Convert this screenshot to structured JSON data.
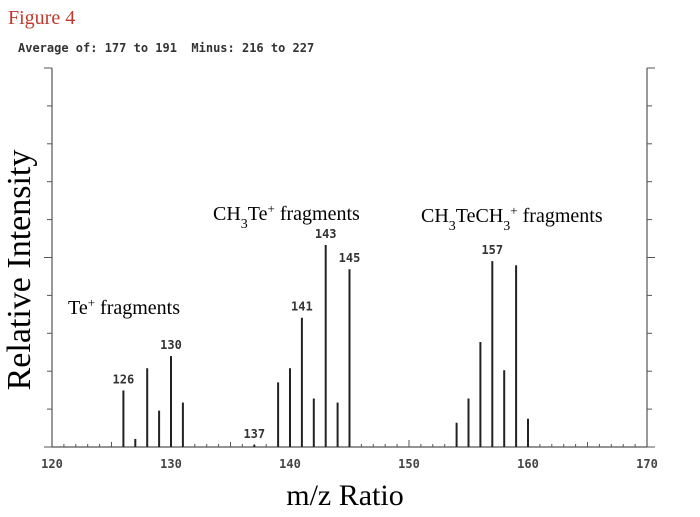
{
  "figure_label": "Figure 4",
  "header_text": "Average of: 177 to 191  Minus: 216 to 227",
  "chart_data": {
    "type": "bar",
    "xlabel": "m/z Ratio",
    "ylabel": "Relative Intensity",
    "xlim": [
      120,
      170
    ],
    "ylim": [
      0,
      100
    ],
    "x_ticks": [
      "120",
      "130",
      "140",
      "150",
      "160",
      "170"
    ],
    "grid": false,
    "peaks": [
      {
        "x": 126,
        "y": 28
      },
      {
        "x": 127,
        "y": 4
      },
      {
        "x": 128,
        "y": 39
      },
      {
        "x": 129,
        "y": 18
      },
      {
        "x": 130,
        "y": 45
      },
      {
        "x": 131,
        "y": 22
      },
      {
        "x": 137,
        "y": 1
      },
      {
        "x": 139,
        "y": 32
      },
      {
        "x": 140,
        "y": 39
      },
      {
        "x": 141,
        "y": 64
      },
      {
        "x": 142,
        "y": 24
      },
      {
        "x": 143,
        "y": 100
      },
      {
        "x": 144,
        "y": 22
      },
      {
        "x": 145,
        "y": 88
      },
      {
        "x": 154,
        "y": 12
      },
      {
        "x": 155,
        "y": 24
      },
      {
        "x": 156,
        "y": 52
      },
      {
        "x": 157,
        "y": 92
      },
      {
        "x": 158,
        "y": 38
      },
      {
        "x": 159,
        "y": 90
      },
      {
        "x": 160,
        "y": 14
      }
    ],
    "peak_labels": [
      {
        "x": 126,
        "text": "126"
      },
      {
        "x": 130,
        "text": "130"
      },
      {
        "x": 137,
        "text": "137"
      },
      {
        "x": 141,
        "text": "141"
      },
      {
        "x": 143,
        "text": "143"
      },
      {
        "x": 145,
        "text": "145"
      },
      {
        "x": 157,
        "text": "157"
      }
    ],
    "annotations": {
      "te": {
        "main": "Te",
        "sup": "+",
        "rest": " fragments"
      },
      "ch3te": {
        "a": "CH",
        "sub": "3",
        "b": "Te",
        "sup": "+",
        "rest": " fragments"
      },
      "ch3tech3": {
        "a": "CH",
        "sub1": "3",
        "b": "TeCH",
        "sub2": "3",
        "sup": "+",
        "rest": " fragments"
      }
    }
  }
}
